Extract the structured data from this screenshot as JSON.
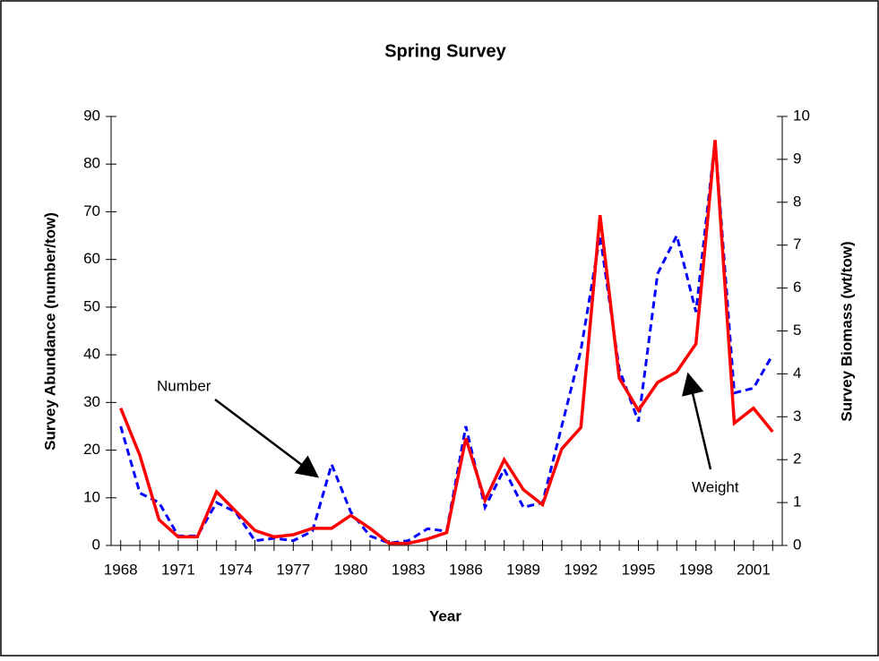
{
  "chart_data": {
    "type": "line",
    "title": "Spring Survey",
    "x_label": "Year",
    "y_label": "Survey Abundance (number/tow)",
    "y2_label": "Survey Biomass (wt/tow)",
    "categories": [
      "1968",
      null,
      null,
      "1971",
      null,
      null,
      "1974",
      null,
      null,
      "1977",
      null,
      null,
      "1980",
      null,
      null,
      "1983",
      null,
      null,
      "1986",
      null,
      null,
      "1989",
      null,
      null,
      "1992",
      null,
      null,
      "1995",
      null,
      null,
      "1998",
      null,
      null,
      "2001",
      null
    ],
    "series": [
      {
        "name": "Number",
        "color": "#0000ff",
        "dashed": true,
        "values": [
          25,
          11,
          9,
          2,
          2,
          9,
          7,
          1,
          1.5,
          1,
          3,
          17,
          7,
          2,
          0.5,
          1,
          3.5,
          3,
          25,
          8,
          16,
          8,
          9,
          25,
          41,
          65,
          37,
          26,
          57,
          65,
          49,
          85,
          32,
          33,
          40
        ]
      },
      {
        "name": "Weight",
        "color": "#ff0000",
        "axis": "y2",
        "values": [
          3.2,
          2.1,
          0.6,
          0.2,
          0.2,
          1.25,
          0.8,
          0.35,
          0.2,
          0.25,
          0.4,
          0.4,
          0.7,
          0.4,
          0.05,
          0.05,
          0.15,
          0.3,
          2.5,
          1.05,
          2.0,
          1.3,
          0.95,
          2.25,
          2.75,
          7.7,
          3.9,
          3.15,
          3.8,
          4.05,
          4.7,
          9.45,
          2.85,
          3.2,
          2.65
        ]
      }
    ],
    "ylim": [
      0,
      90
    ],
    "yticks": [
      0,
      10,
      20,
      30,
      40,
      50,
      60,
      70,
      80,
      90
    ],
    "y2lim": [
      0,
      10
    ],
    "y2ticks": [
      0,
      1,
      2,
      3,
      4,
      5,
      6,
      7,
      8,
      9,
      10
    ],
    "annotations": [
      "Number",
      "Weight"
    ]
  }
}
